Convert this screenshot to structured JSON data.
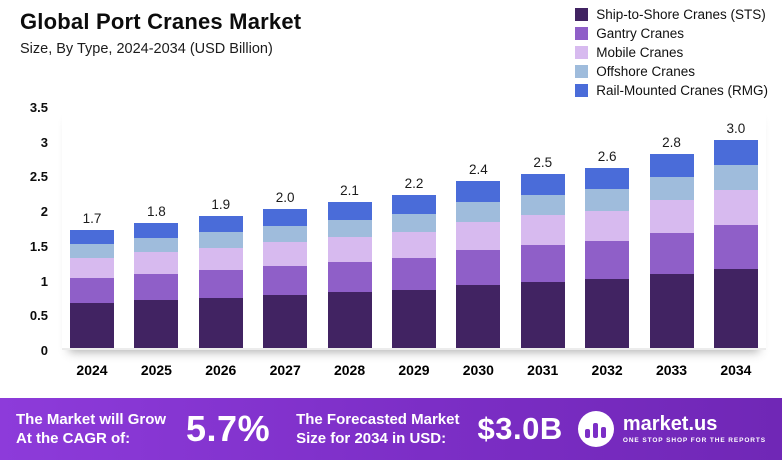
{
  "title": "Global Port Cranes Market",
  "subtitle": "Size, By Type, 2024-2034 (USD Billion)",
  "chart_data": {
    "type": "bar",
    "stacked": true,
    "title": "Global Port Cranes Market",
    "subtitle": "Size, By Type, 2024-2034 (USD Billion)",
    "xlabel": "",
    "ylabel": "USD Billion",
    "ylim": [
      0,
      3.5
    ],
    "yticks": [
      "0",
      "0.5",
      "1",
      "1.5",
      "2",
      "2.5",
      "3",
      "3.5"
    ],
    "grid": false,
    "legend_position": "top-right",
    "categories": [
      "2024",
      "2025",
      "2026",
      "2027",
      "2028",
      "2029",
      "2030",
      "2031",
      "2032",
      "2033",
      "2034"
    ],
    "totals": [
      1.7,
      1.8,
      1.9,
      2.0,
      2.1,
      2.2,
      2.4,
      2.5,
      2.6,
      2.8,
      3.0
    ],
    "totals_display": [
      "1.7",
      "1.8",
      "1.9",
      "2.0",
      "2.1",
      "2.2",
      "2.4",
      "2.5",
      "2.6",
      "2.8",
      "3.0"
    ],
    "series": [
      {
        "name": "Ship-to-Shore Cranes (STS)",
        "color": "#412362",
        "values": [
          0.65,
          0.69,
          0.72,
          0.76,
          0.8,
          0.84,
          0.91,
          0.95,
          0.99,
          1.06,
          1.14
        ]
      },
      {
        "name": "Gantry Cranes",
        "color": "#8f5fc8",
        "values": [
          0.36,
          0.38,
          0.4,
          0.42,
          0.44,
          0.46,
          0.5,
          0.53,
          0.55,
          0.59,
          0.63
        ]
      },
      {
        "name": "Mobile Cranes",
        "color": "#d7baef",
        "values": [
          0.29,
          0.31,
          0.32,
          0.34,
          0.36,
          0.37,
          0.41,
          0.43,
          0.44,
          0.48,
          0.51
        ]
      },
      {
        "name": "Offshore Cranes",
        "color": "#9fbcdc",
        "values": [
          0.2,
          0.21,
          0.23,
          0.24,
          0.25,
          0.26,
          0.29,
          0.3,
          0.31,
          0.33,
          0.36
        ]
      },
      {
        "name": "Rail-Mounted Cranes (RMG)",
        "color": "#4a6cd9",
        "values": [
          0.2,
          0.21,
          0.23,
          0.24,
          0.25,
          0.27,
          0.29,
          0.29,
          0.31,
          0.34,
          0.36
        ]
      }
    ]
  },
  "footer": {
    "accent_color": "#7c2ec6",
    "cagr_label": "The Market will Grow\nAt the CAGR of:",
    "cagr_value": "5.7%",
    "forecast_label": "The Forecasted Market\nSize for 2034 in USD:",
    "forecast_value": "$3.0B",
    "logo_name": "market.us",
    "logo_tagline": "ONE STOP SHOP FOR THE REPORTS"
  }
}
